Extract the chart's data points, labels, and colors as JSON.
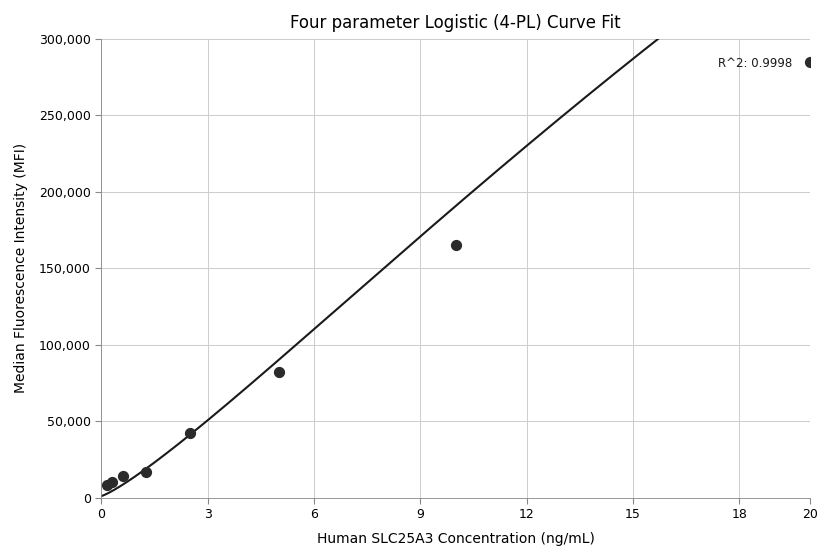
{
  "title": "Four parameter Logistic (4-PL) Curve Fit",
  "xlabel": "Human SLC25A3 Concentration (ng/mL)",
  "ylabel": "Median Fluorescence Intensity (MFI)",
  "r_squared": "R^2: 0.9998",
  "scatter_x": [
    0.156,
    0.313,
    0.625,
    1.25,
    2.5,
    5.0,
    10.0,
    20.0
  ],
  "scatter_y": [
    8500,
    10500,
    14000,
    17000,
    42000,
    82000,
    165000,
    285000
  ],
  "xlim": [
    0,
    20
  ],
  "ylim": [
    0,
    300000
  ],
  "xticks": [
    0,
    3,
    6,
    9,
    12,
    15,
    18
  ],
  "yticks": [
    0,
    50000,
    100000,
    150000,
    200000,
    250000,
    300000
  ],
  "ytick_labels": [
    "0",
    "50,000",
    "100,000",
    "150,000",
    "200,000",
    "250,000",
    "300,000"
  ],
  "xtick_labels": [
    "0",
    "3",
    "6",
    "9",
    "12",
    "15",
    "18"
  ],
  "x_max_tick": 20,
  "x_max_label": "20",
  "background_color": "#ffffff",
  "grid_color": "#cccccc",
  "line_color": "#1a1a1a",
  "scatter_color": "#2b2b2b",
  "title_fontsize": 12,
  "label_fontsize": 10,
  "tick_fontsize": 9
}
